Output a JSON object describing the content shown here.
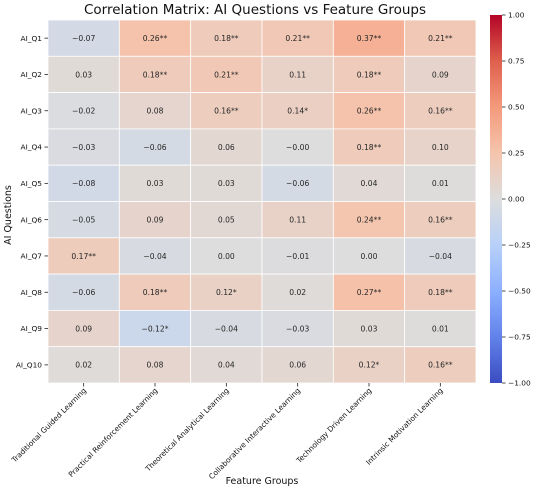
{
  "chart_data": {
    "type": "heatmap",
    "title": "Correlation Matrix: AI Questions vs Feature Groups",
    "xlabel": "Feature Groups",
    "ylabel": "AI Questions",
    "columns": [
      "Traditional Guided Learning",
      "Practical Reinforcement Learning",
      "Theoretical Analytical Learning",
      "Collaborative Interactive Learning",
      "Technology Driven Learning",
      "Intrinsic Motivation Learning"
    ],
    "rows": [
      "AI_Q1",
      "AI_Q2",
      "AI_Q3",
      "AI_Q4",
      "AI_Q5",
      "AI_Q6",
      "AI_Q7",
      "AI_Q8",
      "AI_Q9",
      "AI_Q10"
    ],
    "values": [
      [
        -0.07,
        0.26,
        0.18,
        0.21,
        0.37,
        0.21
      ],
      [
        0.03,
        0.18,
        0.21,
        0.11,
        0.18,
        0.09
      ],
      [
        -0.02,
        0.08,
        0.16,
        0.14,
        0.26,
        0.16
      ],
      [
        -0.03,
        -0.06,
        0.06,
        -0.0,
        0.18,
        0.1
      ],
      [
        -0.08,
        0.03,
        0.03,
        -0.06,
        0.04,
        0.01
      ],
      [
        -0.05,
        0.09,
        0.05,
        0.11,
        0.24,
        0.16
      ],
      [
        0.17,
        -0.04,
        0.0,
        -0.01,
        0.0,
        -0.04
      ],
      [
        -0.06,
        0.18,
        0.12,
        0.02,
        0.27,
        0.18
      ],
      [
        0.09,
        -0.12,
        -0.04,
        -0.03,
        0.03,
        0.01
      ],
      [
        0.02,
        0.08,
        0.04,
        0.06,
        0.12,
        0.16
      ]
    ],
    "labels": [
      [
        "−0.07",
        "0.26**",
        "0.18**",
        "0.21**",
        "0.37**",
        "0.21**"
      ],
      [
        "0.03",
        "0.18**",
        "0.21**",
        "0.11",
        "0.18**",
        "0.09"
      ],
      [
        "−0.02",
        "0.08",
        "0.16**",
        "0.14*",
        "0.26**",
        "0.16**"
      ],
      [
        "−0.03",
        "−0.06",
        "0.06",
        "−0.00",
        "0.18**",
        "0.10"
      ],
      [
        "−0.08",
        "0.03",
        "0.03",
        "−0.06",
        "0.04",
        "0.01"
      ],
      [
        "−0.05",
        "0.09",
        "0.05",
        "0.11",
        "0.24**",
        "0.16**"
      ],
      [
        "0.17**",
        "−0.04",
        "0.00",
        "−0.01",
        "0.00",
        "−0.04"
      ],
      [
        "−0.06",
        "0.18**",
        "0.12*",
        "0.02",
        "0.27**",
        "0.18**"
      ],
      [
        "0.09",
        "−0.12*",
        "−0.04",
        "−0.03",
        "0.03",
        "0.01"
      ],
      [
        "0.02",
        "0.08",
        "0.04",
        "0.06",
        "0.12*",
        "0.16**"
      ]
    ],
    "colorbar": {
      "colormap": "coolwarm",
      "vmin": -1.0,
      "vmax": 1.0,
      "ticks": [
        "1.00",
        "0.75",
        "0.50",
        "0.25",
        "0.00",
        "−0.25",
        "−0.50",
        "−0.75",
        "−1.00"
      ],
      "tick_values": [
        1.0,
        0.75,
        0.5,
        0.25,
        0.0,
        -0.25,
        -0.5,
        -0.75,
        -1.0
      ]
    }
  }
}
